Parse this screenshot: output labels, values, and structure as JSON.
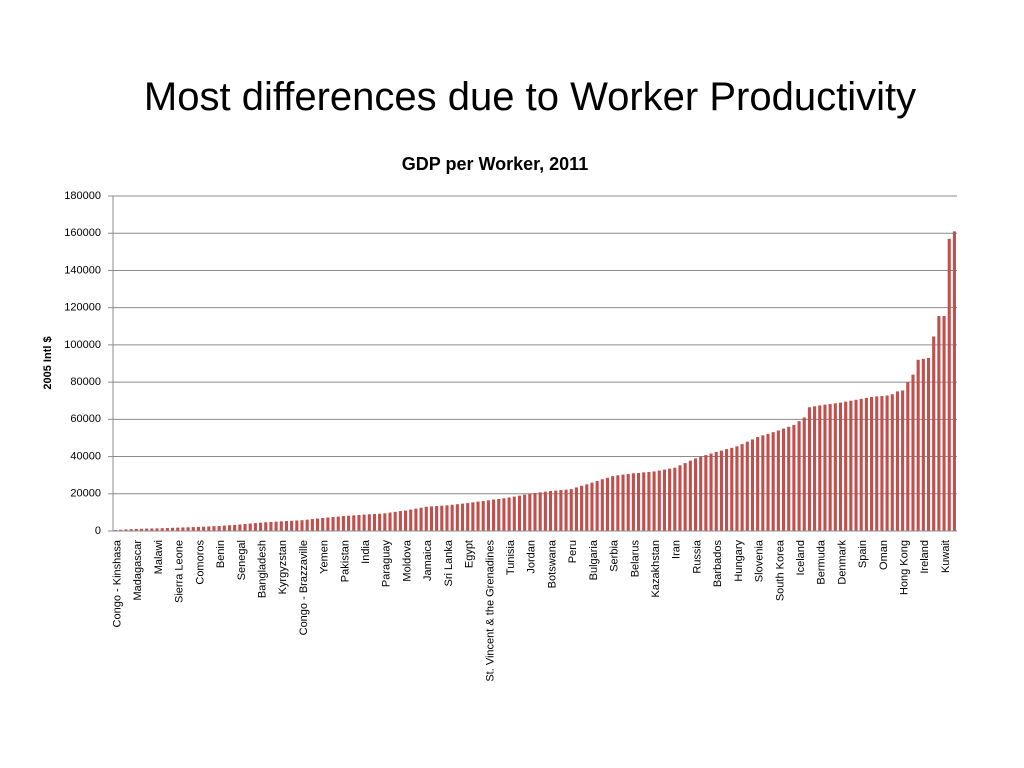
{
  "slide_title": "Most differences due to Worker Productivity",
  "chart_data": {
    "type": "bar",
    "title": "GDP per Worker, 2011",
    "ylabel": "2005 Intl $",
    "color": "#c0504d",
    "grid": true,
    "ylim": [
      0,
      180000
    ],
    "yticks": [
      0,
      20000,
      40000,
      60000,
      80000,
      100000,
      120000,
      140000,
      160000,
      180000
    ],
    "categories": [
      "Congo - Kinshasa",
      null,
      null,
      null,
      "Madagascar",
      null,
      null,
      null,
      "Malawi",
      null,
      null,
      null,
      "Sierra Leone",
      null,
      null,
      null,
      "Comoros",
      null,
      null,
      null,
      "Benin",
      null,
      null,
      null,
      "Senegal",
      null,
      null,
      null,
      "Bangladesh",
      null,
      null,
      null,
      "Kyrgyzstan",
      null,
      null,
      null,
      "Congo - Brazzaville",
      null,
      null,
      null,
      "Yemen",
      null,
      null,
      null,
      "Pakistan",
      null,
      null,
      null,
      "India",
      null,
      null,
      null,
      "Paraguay",
      null,
      null,
      null,
      "Moldova",
      null,
      null,
      null,
      "Jamaica",
      null,
      null,
      null,
      "Sri Lanka",
      null,
      null,
      null,
      "Egypt",
      null,
      null,
      null,
      "St. Vincent & the Grenadines",
      null,
      null,
      null,
      "Tunisia",
      null,
      null,
      null,
      "Jordan",
      null,
      null,
      null,
      "Botswana",
      null,
      null,
      null,
      "Peru",
      null,
      null,
      null,
      "Bulgaria",
      null,
      null,
      null,
      "Serbia",
      null,
      null,
      null,
      "Belarus",
      null,
      null,
      null,
      "Kazakhstan",
      null,
      null,
      null,
      "Iran",
      null,
      null,
      null,
      "Russia",
      null,
      null,
      null,
      "Barbados",
      null,
      null,
      null,
      "Hungary",
      null,
      null,
      null,
      "Slovenia",
      null,
      null,
      null,
      "South Korea",
      null,
      null,
      null,
      "Iceland",
      null,
      null,
      null,
      "Bermuda",
      null,
      null,
      null,
      "Denmark",
      null,
      null,
      null,
      "Spain",
      null,
      null,
      null,
      "Oman",
      null,
      null,
      null,
      "Hong Kong",
      null,
      null,
      null,
      "Ireland",
      null,
      null,
      null,
      "Kuwait",
      null,
      null
    ],
    "values": [
      500,
      700,
      850,
      1000,
      1100,
      1200,
      1300,
      1350,
      1400,
      1500,
      1600,
      1700,
      1800,
      1900,
      2000,
      2100,
      2200,
      2300,
      2450,
      2600,
      2700,
      2900,
      3100,
      3300,
      3500,
      3750,
      4000,
      4250,
      4500,
      4700,
      4850,
      5000,
      5200,
      5350,
      5500,
      5650,
      5800,
      6100,
      6400,
      6700,
      7000,
      7250,
      7500,
      7750,
      8000,
      8200,
      8400,
      8600,
      8800,
      9000,
      9150,
      9300,
      9500,
      9900,
      10300,
      10700,
      11000,
      11500,
      12000,
      12500,
      13000,
      13200,
      13400,
      13600,
      13800,
      14100,
      14400,
      14700,
      15000,
      15400,
      15800,
      16100,
      16500,
      16900,
      17200,
      17600,
      18000,
      18500,
      19000,
      19500,
      20000,
      20400,
      20800,
      21100,
      21500,
      21700,
      22000,
      22200,
      22500,
      23400,
      24300,
      25100,
      26000,
      26900,
      27800,
      28600,
      29500,
      29900,
      30300,
      30600,
      31000,
      31200,
      31500,
      31700,
      32000,
      32500,
      33000,
      33500,
      34000,
      35300,
      36500,
      37800,
      39000,
      39900,
      40800,
      41600,
      42500,
      43200,
      44000,
      44700,
      45500,
      46700,
      48000,
      49200,
      50500,
      51400,
      52200,
      53100,
      54000,
      55000,
      56000,
      57000,
      59000,
      61000,
      66500,
      67000,
      67500,
      67900,
      68200,
      68600,
      69000,
      69500,
      70000,
      70500,
      71000,
      71500,
      72000,
      72300,
      72500,
      72800,
      73500,
      75000,
      75500,
      80000,
      84000,
      92000,
      92500,
      93000,
      104500,
      115500,
      115500,
      157000,
      161000
    ]
  }
}
